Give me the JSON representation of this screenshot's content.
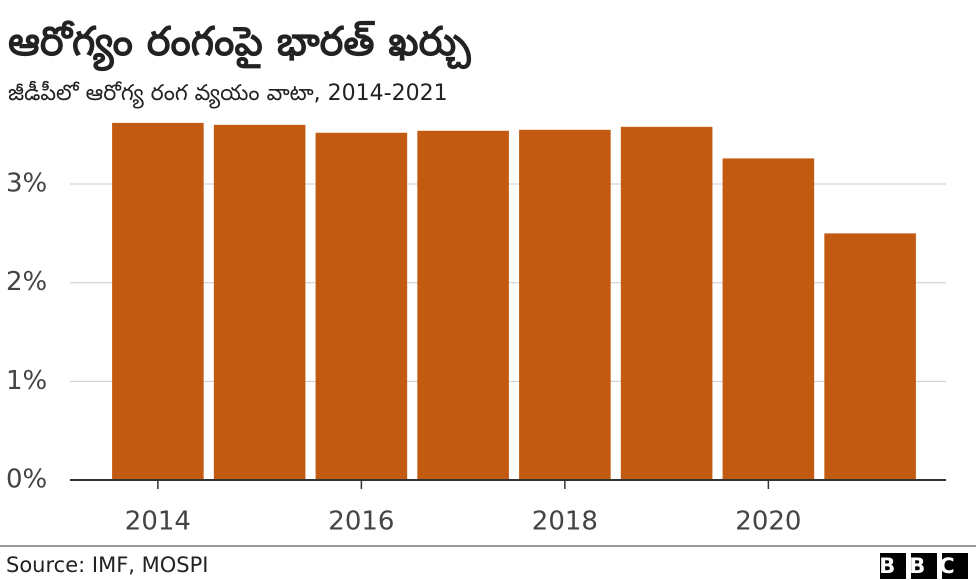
{
  "chart_data": {
    "type": "bar",
    "title": "ఆరోగ్యం రంగంపై భారత్ ఖర్చు",
    "subtitle": "జీడీపీలో ఆరోగ్య రంగ వ్యయం వాటా, 2014-2021",
    "x": [
      2014,
      2015,
      2016,
      2017,
      2018,
      2019,
      2020,
      2021
    ],
    "values": [
      3.62,
      3.6,
      3.52,
      3.54,
      3.55,
      3.58,
      3.26,
      2.5
    ],
    "color": "#c35a11",
    "xlim": [
      2013.5,
      2021.5
    ],
    "xticks": [
      2014,
      2016,
      2018,
      2020
    ],
    "ylim": [
      0,
      3.7
    ],
    "yticks": [
      {
        "value": 0,
        "label": "0%"
      },
      {
        "value": 1,
        "label": "1%"
      },
      {
        "value": 2,
        "label": "2%"
      },
      {
        "value": 3,
        "label": "3%"
      }
    ],
    "grid": true,
    "source": "Source: IMF, MOSPI",
    "logo": "BBC"
  }
}
